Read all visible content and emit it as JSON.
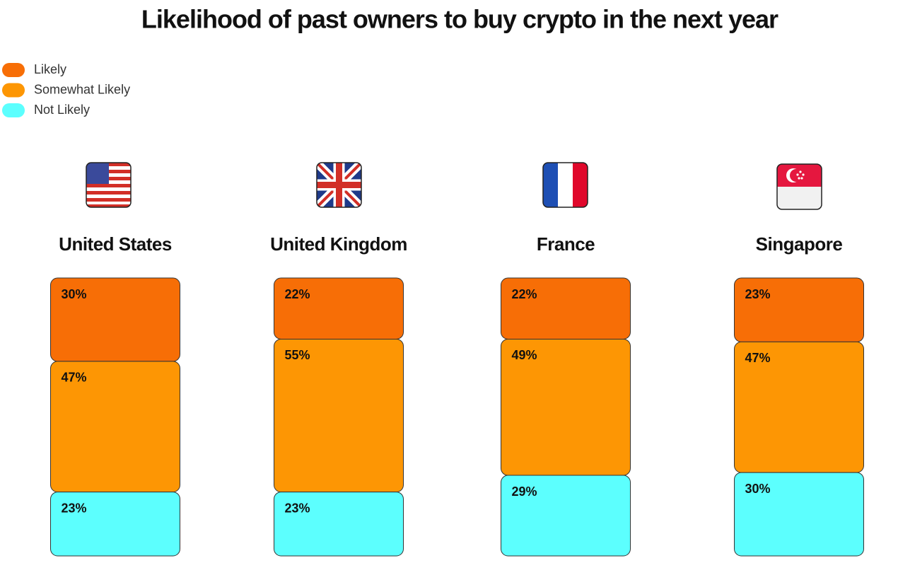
{
  "chart_data": {
    "type": "bar",
    "stacked": true,
    "title": "Likelihood of past owners to buy crypto in the next year",
    "categories": [
      "United States",
      "United Kingdom",
      "France",
      "Singapore"
    ],
    "series": [
      {
        "name": "Likely",
        "color": "#f76e06",
        "values": [
          30,
          22,
          22,
          23
        ],
        "value_labels": [
          "30%",
          "22%",
          "22%",
          "23%"
        ]
      },
      {
        "name": "Somewhat Likely",
        "color": "#fd9604",
        "values": [
          47,
          55,
          49,
          47
        ],
        "value_labels": [
          "47%",
          "55%",
          "49%",
          "47%"
        ]
      },
      {
        "name": "Not Likely",
        "color": "#5cfffe",
        "values": [
          23,
          23,
          29,
          30
        ],
        "value_labels": [
          "23%",
          "23%",
          "29%",
          "30%"
        ]
      }
    ]
  }
}
